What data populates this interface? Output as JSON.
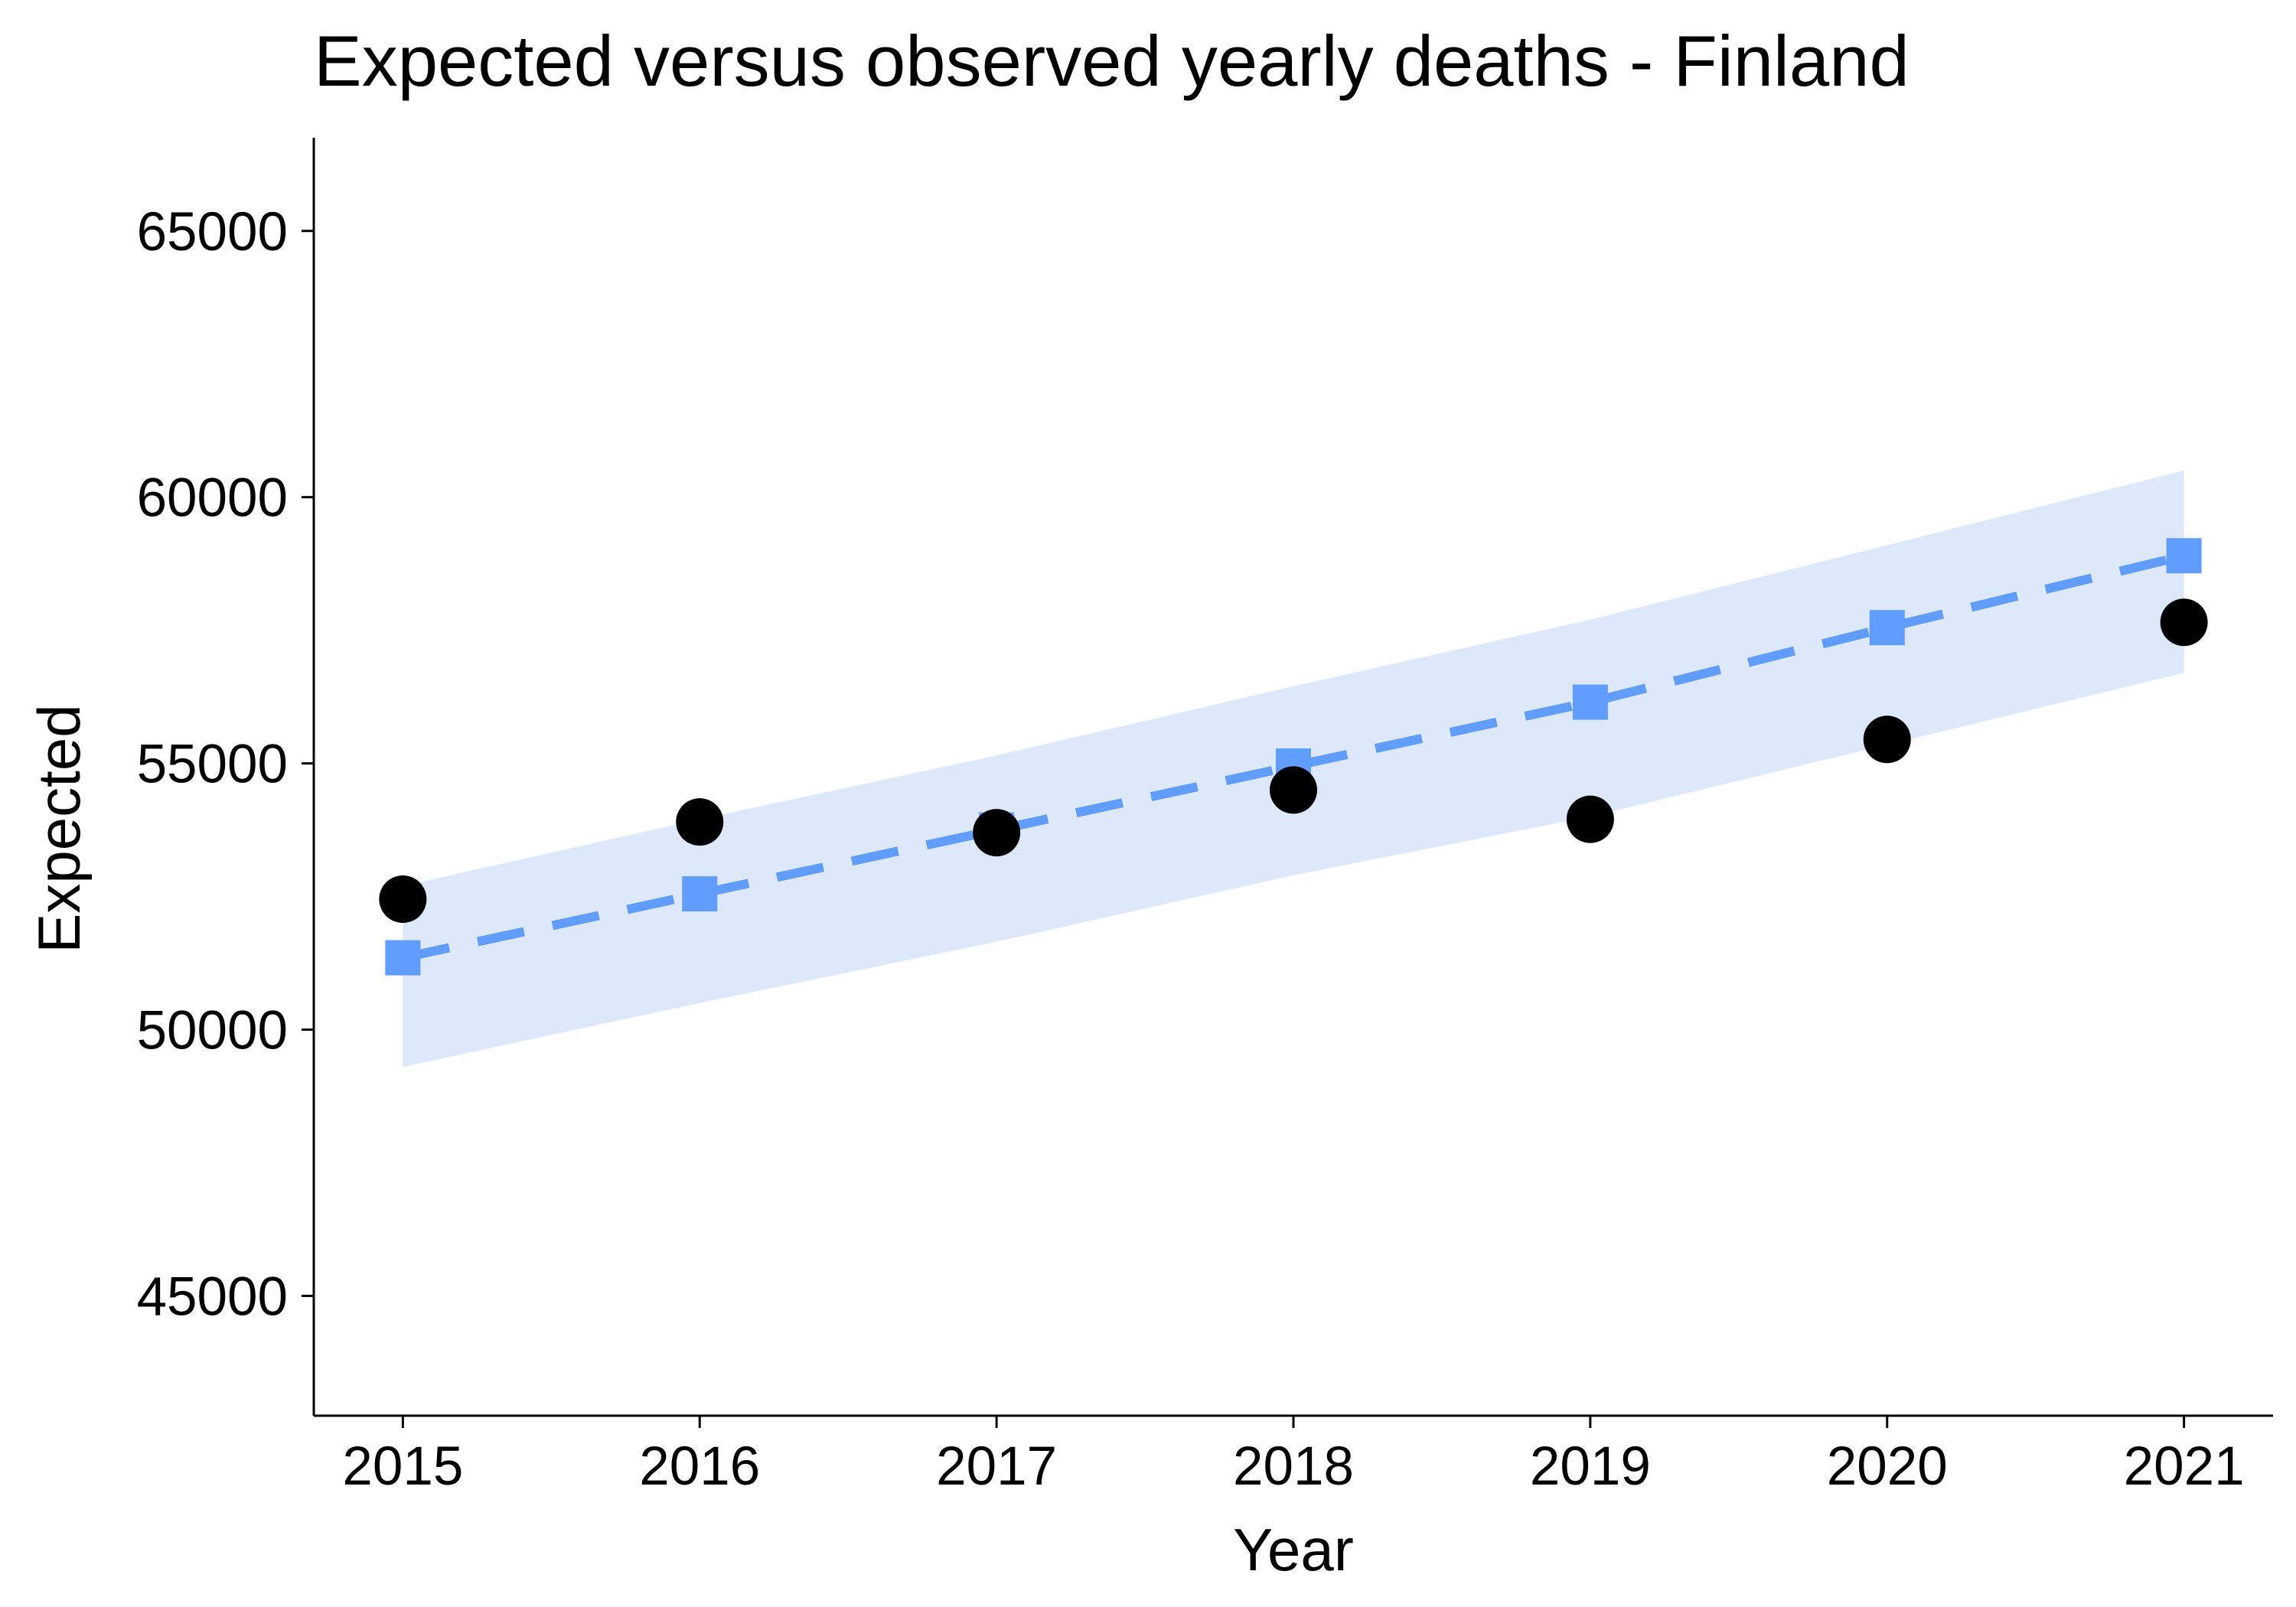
{
  "chart_data": {
    "type": "line",
    "title": "Expected versus observed yearly deaths - Finland",
    "xlabel": "Year",
    "ylabel": "Expected",
    "x": [
      2015,
      2016,
      2017,
      2018,
      2019,
      2020,
      2021
    ],
    "xlim": [
      2014.7,
      2021.3
    ],
    "ylim": [
      42750,
      66750
    ],
    "y_ticks": [
      45000,
      50000,
      55000,
      60000,
      65000
    ],
    "grid": false,
    "legend": "none",
    "series": [
      {
        "role": "expected",
        "style": "dashed line with square markers",
        "color": "#619CFF",
        "values": [
          51350,
          52550,
          53750,
          54950,
          56150,
          57550,
          58900
        ]
      },
      {
        "role": "observed",
        "style": "circle markers",
        "color": "#000000",
        "values": [
          52450,
          53900,
          53700,
          54500,
          53950,
          55450,
          57650
        ]
      }
    ],
    "band": {
      "role": "expected interval",
      "color": "#DDE9FB",
      "lower": [
        49300,
        50500,
        51650,
        52900,
        54000,
        55350,
        56700
      ],
      "upper": [
        52700,
        53950,
        55150,
        56450,
        57700,
        59100,
        60500
      ]
    }
  }
}
